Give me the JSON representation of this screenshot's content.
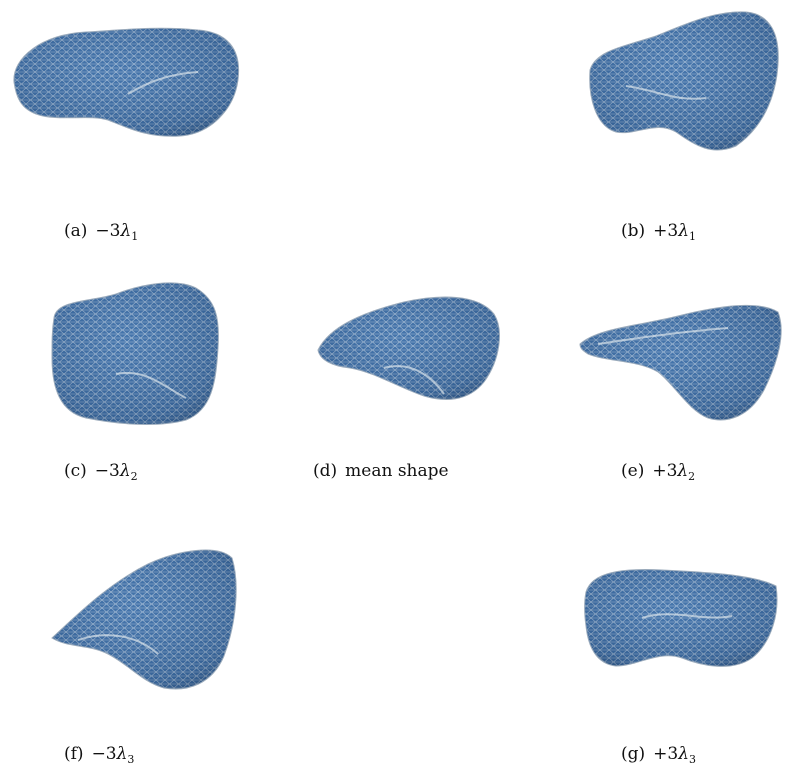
{
  "figure": {
    "panels": [
      {
        "id": "a",
        "label": "(a)",
        "caption_sign": "−3",
        "caption_symbol": "λ",
        "caption_sub": "1"
      },
      {
        "id": "b",
        "label": "(b)",
        "caption_sign": "+3",
        "caption_symbol": "λ",
        "caption_sub": "1"
      },
      {
        "id": "c",
        "label": "(c)",
        "caption_sign": "−3",
        "caption_symbol": "λ",
        "caption_sub": "2"
      },
      {
        "id": "d",
        "label": "(d)",
        "caption_text": "mean shape"
      },
      {
        "id": "e",
        "label": "(e)",
        "caption_sign": "+3",
        "caption_symbol": "λ",
        "caption_sub": "2"
      },
      {
        "id": "f",
        "label": "(f)",
        "caption_sign": "−3",
        "caption_symbol": "λ",
        "caption_sub": "3"
      },
      {
        "id": "g",
        "label": "(g)",
        "caption_sign": "+3",
        "caption_symbol": "λ",
        "caption_sub": "3"
      }
    ],
    "colors": {
      "mesh_fill": "#3f6fa6",
      "mesh_dark": "#2c5585",
      "mesh_wire": "#d9e2ea"
    }
  }
}
